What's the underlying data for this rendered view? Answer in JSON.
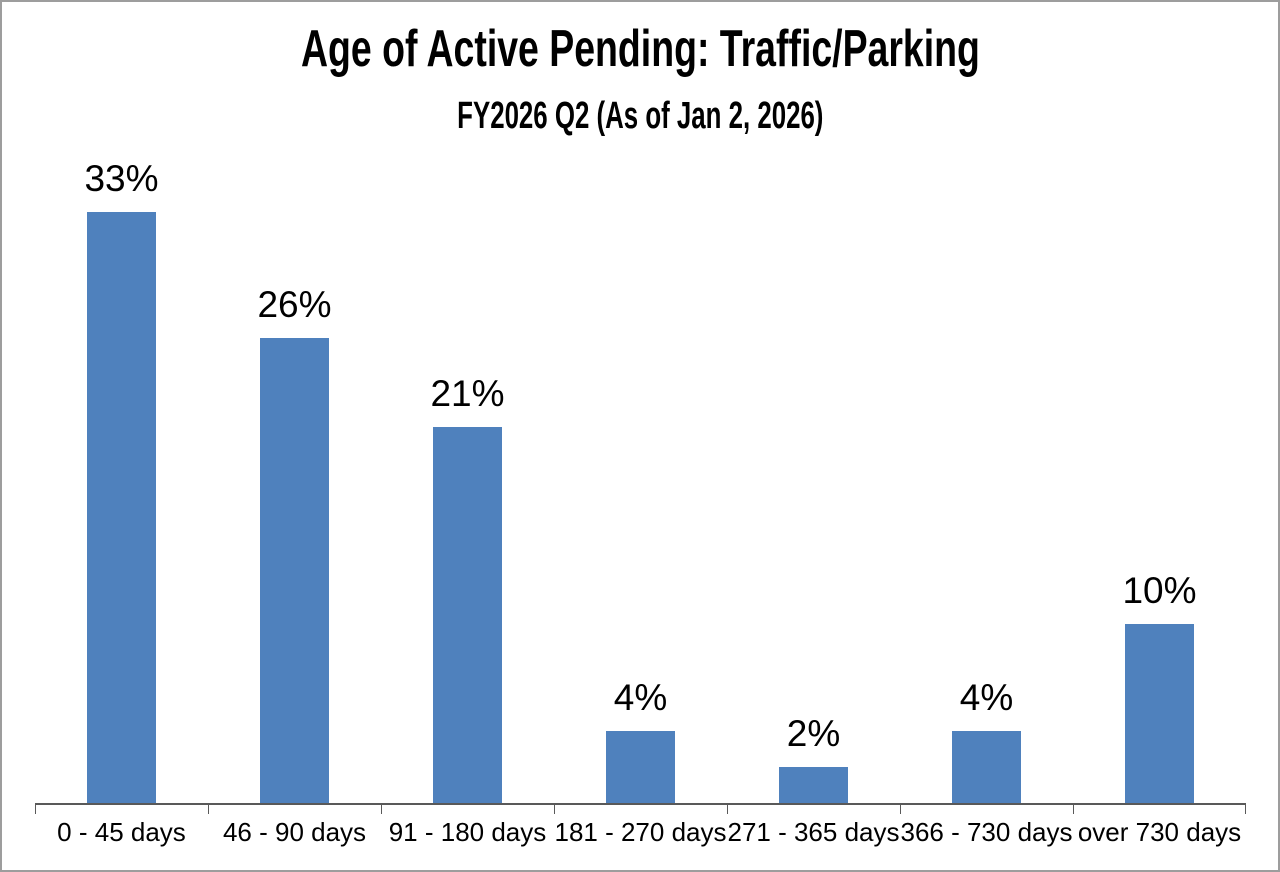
{
  "page": {
    "background_color": "#ffffff",
    "frame_border_color": "#9d9d9d"
  },
  "chart_data": {
    "type": "bar",
    "title": "Age of Active Pending: Traffic/Parking",
    "subtitle": "FY2026 Q2 (As of Jan 2, 2026)",
    "categories": [
      "0 - 45 days",
      "46 - 90 days",
      "91 - 180 days",
      "181 - 270 days",
      "271 - 365 days",
      "366 - 730 days",
      "over 730 days"
    ],
    "values": [
      33,
      26,
      21,
      4,
      2,
      4,
      10
    ],
    "data_labels": [
      "33%",
      "26%",
      "21%",
      "4%",
      "2%",
      "4%",
      "10%"
    ],
    "xlabel": "",
    "ylabel": "",
    "ylim": [
      0,
      35
    ],
    "grid": false,
    "legend_visible": false,
    "data_labels_position": "above-bar",
    "bar_color": "#4f81bd",
    "axis_color": "#595959",
    "text_color": "#000000"
  }
}
